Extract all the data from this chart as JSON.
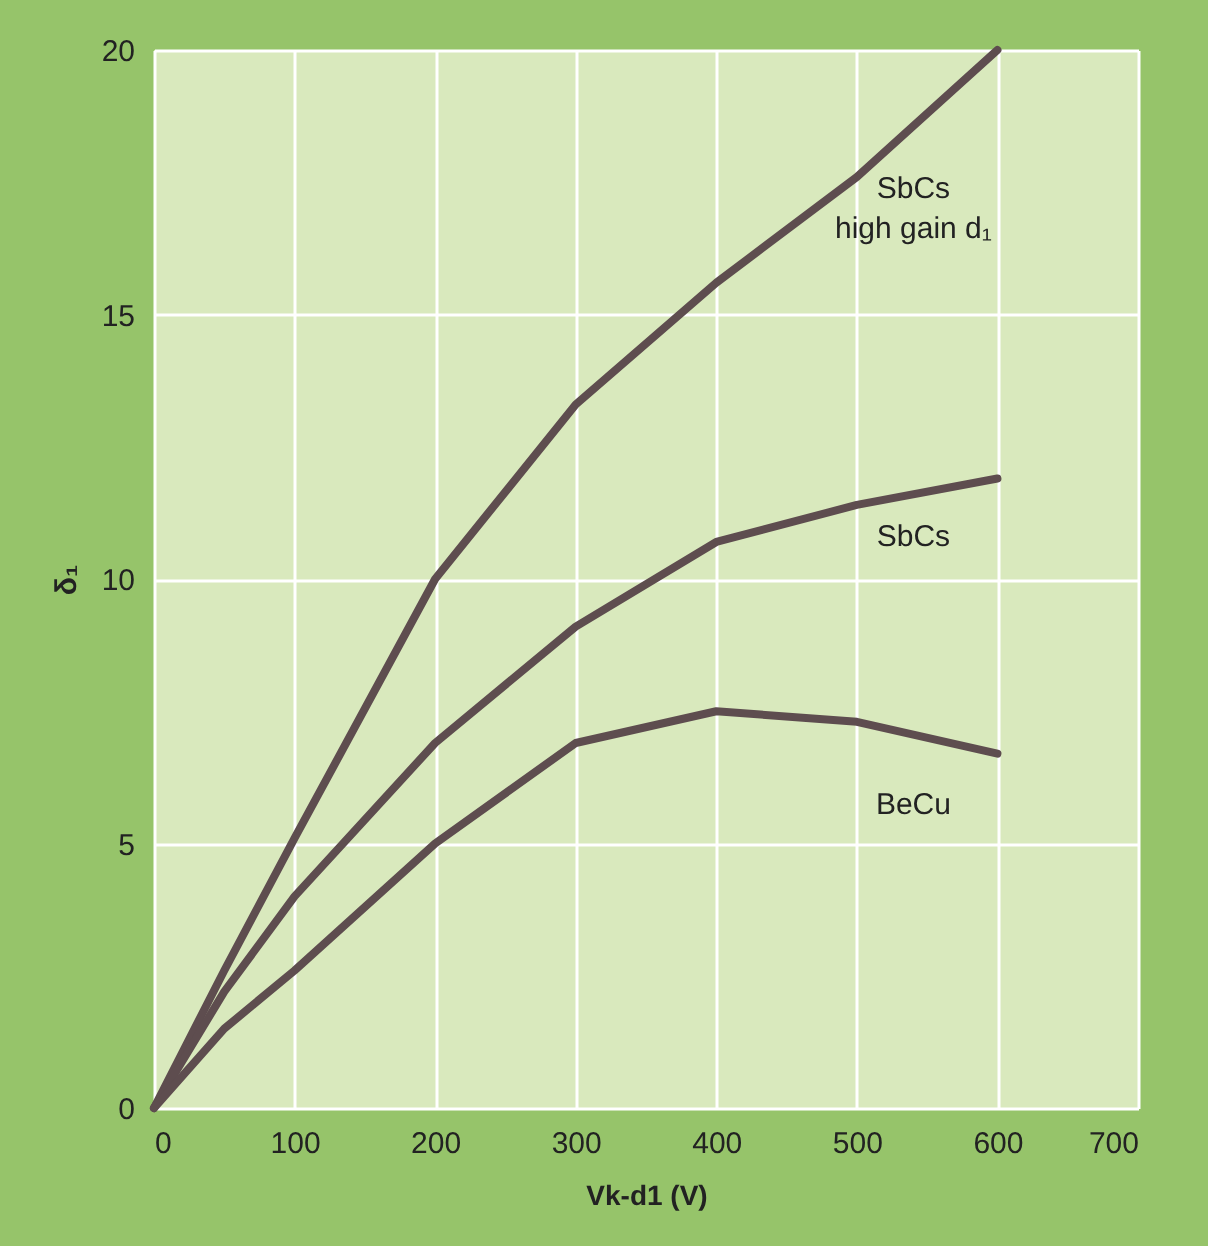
{
  "chart_data": {
    "type": "line",
    "xlabel": "Vk-d1 (V)",
    "ylabel": "δ₁",
    "xlim": [
      0,
      700
    ],
    "xticks": [
      0,
      100,
      200,
      300,
      400,
      500,
      600,
      700
    ],
    "ylim": [
      0,
      20
    ],
    "yticks": [
      0,
      5,
      10,
      15,
      20
    ],
    "grid": true,
    "legend": false,
    "marker": "none",
    "line_style": "solid",
    "x": [
      0,
      50,
      100,
      200,
      300,
      400,
      500,
      600
    ],
    "series": [
      {
        "name": "SbCs\nhigh gain d₁",
        "color": "#5e4d4f",
        "values": [
          0,
          2.6,
          5.1,
          10.0,
          13.3,
          15.6,
          17.6,
          20
        ]
      },
      {
        "name": "SbCs",
        "color": "#5e4d4f",
        "values": [
          0,
          2.2,
          4.0,
          6.9,
          9.1,
          10.7,
          11.4,
          11.9
        ]
      },
      {
        "name": "BeCu",
        "color": "#5e4d4f",
        "values": [
          0,
          1.5,
          2.6,
          5.0,
          6.9,
          7.5,
          7.3,
          6.7
        ]
      }
    ]
  }
}
